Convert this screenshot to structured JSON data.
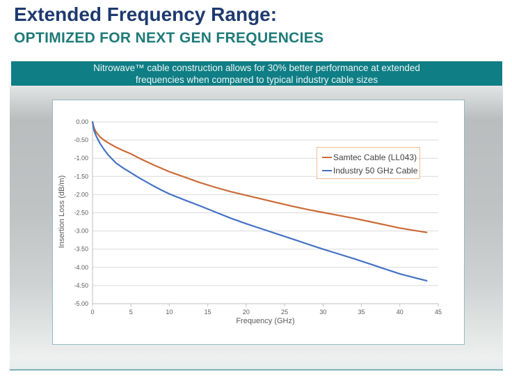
{
  "header": {
    "title": "Extended Frequency Range:",
    "subtitle": "OPTIMIZED FOR NEXT GEN FREQUENCIES"
  },
  "banner": {
    "line1": "Nitrowave™ cable construction allows for 30% better performance at extended",
    "line2": "frequencies when compared to typical industry cable sizes",
    "bg_color": "#0F7E85",
    "text_color": "#EDF6F6"
  },
  "colors": {
    "title_navy": "#1E3A6E",
    "subtitle_teal": "#1E7A78",
    "banner_teal": "#0F7E85",
    "panel_border_teal": "#93BCC0",
    "legend_border_orange": "#F2BA90",
    "samtec_orange": "#CB6A35",
    "industry_blue": "#4472C4"
  },
  "chart_data": {
    "type": "line",
    "title": "",
    "xlabel": "Frequency (GHz)",
    "ylabel": "Insertion Loss (dB/m)",
    "xlim": [
      0,
      45
    ],
    "ylim": [
      -5,
      0
    ],
    "x_ticks": [
      0,
      5,
      10,
      15,
      20,
      25,
      30,
      35,
      40,
      45
    ],
    "y_ticks": [
      0,
      -0.5,
      -1,
      -1.5,
      -2,
      -2.5,
      -3,
      -3.5,
      -4,
      -4.5,
      -5
    ],
    "y_tick_labels": [
      "0.00",
      "-0.50",
      "-1.00",
      "-1.50",
      "-2.00",
      "-2.50",
      "-3.00",
      "-3.50",
      "-4.00",
      "-4.50",
      "-5.00"
    ],
    "grid": "horizontal",
    "grid_color": "#D9D9D9",
    "axis_color": "#BFBFBF",
    "tick_color": "#595959",
    "legend_position": "inside-upper-right",
    "series": [
      {
        "id": "samtec",
        "name": "Samtec Cable (LL043)",
        "color": "#CB6A35",
        "points": [
          [
            0,
            0
          ],
          [
            0.2,
            -0.17
          ],
          [
            0.5,
            -0.29
          ],
          [
            1,
            -0.42
          ],
          [
            1.5,
            -0.5
          ],
          [
            2,
            -0.57
          ],
          [
            3,
            -0.69
          ],
          [
            4,
            -0.79
          ],
          [
            5,
            -0.88
          ],
          [
            6,
            -0.99
          ],
          [
            7,
            -1.09
          ],
          [
            8,
            -1.19
          ],
          [
            9,
            -1.28
          ],
          [
            10,
            -1.37
          ],
          [
            12,
            -1.52
          ],
          [
            14,
            -1.67
          ],
          [
            16,
            -1.8
          ],
          [
            18,
            -1.92
          ],
          [
            20,
            -2.02
          ],
          [
            22,
            -2.12
          ],
          [
            24,
            -2.22
          ],
          [
            26,
            -2.32
          ],
          [
            28,
            -2.41
          ],
          [
            30,
            -2.49
          ],
          [
            32,
            -2.57
          ],
          [
            34,
            -2.65
          ],
          [
            36,
            -2.74
          ],
          [
            38,
            -2.83
          ],
          [
            40,
            -2.92
          ],
          [
            42,
            -2.99
          ],
          [
            43.5,
            -3.04
          ]
        ]
      },
      {
        "id": "industry",
        "name": "Industry 50 GHz Cable",
        "color": "#4472C4",
        "points": [
          [
            0,
            0
          ],
          [
            0.2,
            -0.24
          ],
          [
            0.5,
            -0.4
          ],
          [
            1,
            -0.6
          ],
          [
            1.5,
            -0.76
          ],
          [
            2,
            -0.9
          ],
          [
            3,
            -1.12
          ],
          [
            4,
            -1.27
          ],
          [
            5,
            -1.4
          ],
          [
            6,
            -1.53
          ],
          [
            7,
            -1.65
          ],
          [
            8,
            -1.77
          ],
          [
            9,
            -1.88
          ],
          [
            10,
            -1.98
          ],
          [
            12,
            -2.15
          ],
          [
            14,
            -2.31
          ],
          [
            16,
            -2.48
          ],
          [
            18,
            -2.65
          ],
          [
            20,
            -2.8
          ],
          [
            22,
            -2.94
          ],
          [
            24,
            -3.08
          ],
          [
            26,
            -3.22
          ],
          [
            28,
            -3.36
          ],
          [
            30,
            -3.5
          ],
          [
            32,
            -3.63
          ],
          [
            34,
            -3.76
          ],
          [
            36,
            -3.9
          ],
          [
            38,
            -4.04
          ],
          [
            40,
            -4.18
          ],
          [
            42,
            -4.29
          ],
          [
            43.5,
            -4.37
          ]
        ]
      }
    ]
  }
}
